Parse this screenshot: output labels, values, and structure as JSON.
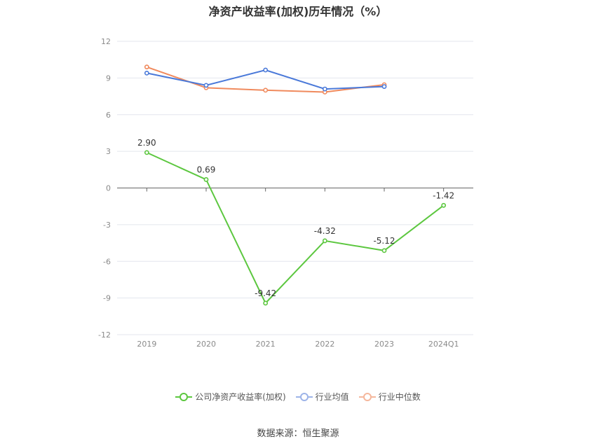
{
  "chart_data": {
    "type": "line",
    "title": "净资产收益率(加权)历年情况（%）",
    "categories": [
      "2019",
      "2020",
      "2021",
      "2022",
      "2023",
      "2024Q1"
    ],
    "ylim": [
      -12,
      12
    ],
    "yticks": [
      12,
      9,
      6,
      3,
      0,
      -3,
      -6,
      -9,
      -12
    ],
    "grid": true,
    "legend_position": "bottom",
    "series": [
      {
        "name": "公司净资产收益率(加权)",
        "color": "#5cc73f",
        "values": [
          2.9,
          0.69,
          -9.42,
          -4.32,
          -5.12,
          -1.42
        ],
        "labels": [
          "2.90",
          "0.69",
          "-9.42",
          "-4.32",
          "-5.12",
          "-1.42"
        ]
      },
      {
        "name": "行业均值",
        "color": "#4a79d9",
        "values": [
          9.4,
          8.4,
          9.65,
          8.1,
          8.3,
          null
        ]
      },
      {
        "name": "行业中位数",
        "color": "#f08a5d",
        "values": [
          9.9,
          8.2,
          8.0,
          7.85,
          8.45,
          null
        ]
      }
    ]
  },
  "legend": {
    "company": "公司净资产收益率(加权)",
    "industry_avg": "行业均值",
    "industry_median": "行业中位数"
  },
  "source": "数据来源：恒生聚源"
}
